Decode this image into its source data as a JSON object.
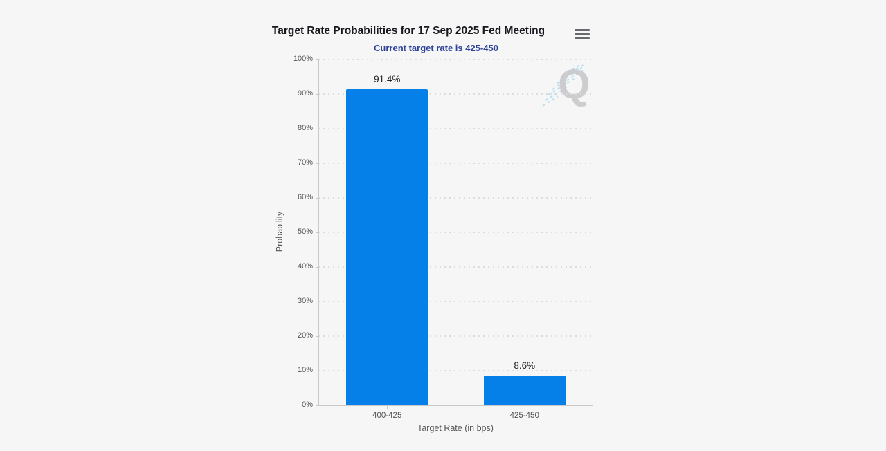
{
  "page": {
    "background": "#f6f6f6"
  },
  "header": {
    "title": "Target Rate Probabilities for 17 Sep 2025 Fed Meeting",
    "subtitle": "Current target rate is 425-450",
    "menu_icon": "hamburger-menu-icon"
  },
  "chart_data": {
    "type": "bar",
    "title": "Target Rate Probabilities for 17 Sep 2025 Fed Meeting",
    "subtitle": "Current target rate is 425-450",
    "categories": [
      "400-425",
      "425-450"
    ],
    "values": [
      91.4,
      8.6
    ],
    "value_labels": [
      "91.4%",
      "8.6%"
    ],
    "xlabel": "Target Rate (in bps)",
    "ylabel": "Probability",
    "ylim": [
      0,
      100
    ],
    "ytick_step": 10,
    "ytick_labels": [
      "0%",
      "10%",
      "20%",
      "30%",
      "40%",
      "50%",
      "60%",
      "70%",
      "80%",
      "90%",
      "100%"
    ],
    "grid": "horizontal-dotted",
    "legend": "none",
    "bar_color": "#0580e8"
  },
  "watermark": {
    "letter": "Q"
  },
  "colors": {
    "title": "#17191e",
    "subtitle": "#2e4399",
    "axis": "#c9c9c9",
    "gridline": "#dcdcdc",
    "tick_text": "#55565a",
    "bar": "#0580e8",
    "value_label": "#202226",
    "watermark_letter": "#c6c7c9",
    "watermark_streak": "#a9d9ef"
  }
}
